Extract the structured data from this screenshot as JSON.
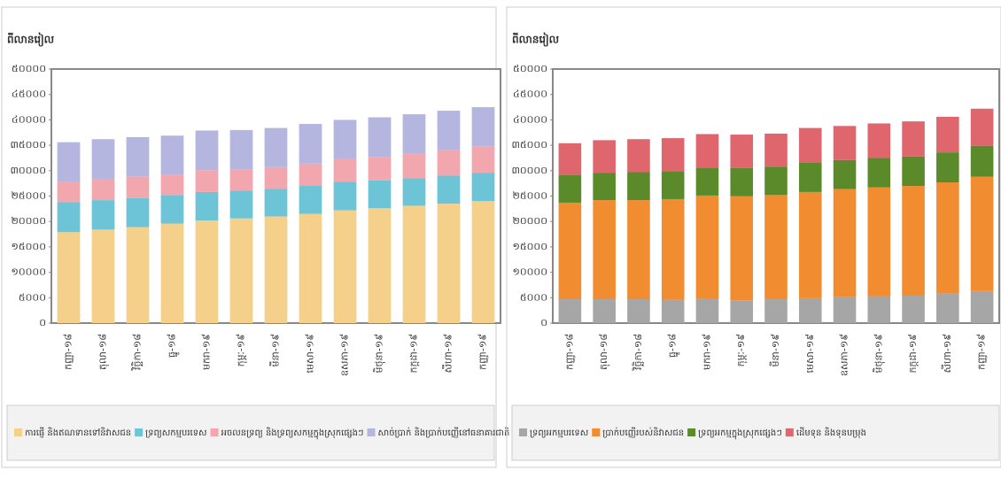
{
  "chart_data": [
    {
      "type": "bar",
      "stacked": true,
      "y_label": "ពីលានរៀល",
      "categories": [
        "កញ្ញា-១៨",
        "តុលា-១៨",
        "វិច្ឆិកា-១៨",
        "ធ្នូ-១៨",
        "មករា-១៩",
        "កុម្ភៈ-១៩",
        "មីនា-១៩",
        "មេសា-១៩",
        "ឧសភា-១៩",
        "មិថុនា-១៩",
        "កក្កដា-១៩",
        "សីហា-១៩",
        "កញ្ញា-១៩"
      ],
      "ylim": [
        0,
        50000
      ],
      "yticks": [
        {
          "value": 0,
          "label": "០"
        },
        {
          "value": 5000,
          "label": "៥០០០"
        },
        {
          "value": 10000,
          "label": "១០០០០"
        },
        {
          "value": 15000,
          "label": "១៥០០០"
        },
        {
          "value": 20000,
          "label": "២០០០០"
        },
        {
          "value": 25000,
          "label": "២៥០០០"
        },
        {
          "value": 30000,
          "label": "៣០០០០"
        },
        {
          "value": 35000,
          "label": "៣៥០០០"
        },
        {
          "value": 40000,
          "label": "៤០០០០"
        },
        {
          "value": 45000,
          "label": "៤៥០០០"
        },
        {
          "value": 50000,
          "label": "៥០០០០"
        }
      ],
      "series": [
        {
          "name": "ការផ្ញើ និងឥណទានទៅនិវាសជន",
          "color": "#f5d08a",
          "values": [
            17900,
            18400,
            18900,
            19600,
            20200,
            20600,
            21000,
            21500,
            22200,
            22600,
            23100,
            23500,
            24000
          ]
        },
        {
          "name": "ទ្រព្យសកម្មបរទេស",
          "color": "#6cc4d6",
          "values": [
            5900,
            5800,
            5700,
            5600,
            5600,
            5500,
            5400,
            5500,
            5600,
            5500,
            5400,
            5500,
            5600
          ]
        },
        {
          "name": "អចលនទ្រព្យ និងទ្រព្យសកម្មក្នុងស្រុកផ្សេងៗ",
          "color": "#f2a6ae",
          "values": [
            4000,
            4100,
            4200,
            4000,
            4300,
            4100,
            4300,
            4400,
            4500,
            4600,
            4800,
            5000,
            5200
          ]
        },
        {
          "name": "សាច់ប្រាក់ និងប្រាក់បញ្ញើនៅធនាគារជាតិ",
          "color": "#b4b6df",
          "values": [
            7800,
            7900,
            7800,
            7700,
            7800,
            7800,
            7700,
            7800,
            7700,
            7800,
            7800,
            7800,
            7700
          ]
        }
      ]
    },
    {
      "type": "bar",
      "stacked": true,
      "y_label": "ពីលានរៀល",
      "categories": [
        "កញ្ញា-១៨",
        "តុលា-១៨",
        "វិច្ឆិកា-១៨",
        "ធ្នូ-១៨",
        "មករា-១៩",
        "កុម្ភៈ-១៩",
        "មីនា-១៩",
        "មេសា-១៩",
        "ឧសភា-១៩",
        "មិថុនា-១៩",
        "កក្កដា-១៩",
        "សីហា-១៩",
        "កញ្ញា-១៩"
      ],
      "ylim": [
        0,
        50000
      ],
      "yticks": [
        {
          "value": 0,
          "label": "០"
        },
        {
          "value": 5000,
          "label": "៥០០០"
        },
        {
          "value": 10000,
          "label": "១០០០០"
        },
        {
          "value": 15000,
          "label": "១៥០០០"
        },
        {
          "value": 20000,
          "label": "២០០០០"
        },
        {
          "value": 25000,
          "label": "២៥០០០"
        },
        {
          "value": 30000,
          "label": "៣០០០០"
        },
        {
          "value": 35000,
          "label": "៣៥០០០"
        },
        {
          "value": 40000,
          "label": "៤០០០០"
        },
        {
          "value": 45000,
          "label": "៤៥០០០"
        },
        {
          "value": 50000,
          "label": "៥០០០០"
        }
      ],
      "series": [
        {
          "name": "ទ្រព្យអកម្មបរទេស",
          "color": "#a6a6a6",
          "values": [
            4700,
            4700,
            4700,
            4600,
            4800,
            4500,
            4700,
            4900,
            5100,
            5300,
            5400,
            5800,
            6300
          ]
        },
        {
          "name": "ប្រាក់បញ្ញើរបស់និវាសជន",
          "color": "#f28c30",
          "values": [
            19000,
            19500,
            19500,
            19800,
            20300,
            20500,
            20500,
            20900,
            21300,
            21400,
            21600,
            21900,
            22500
          ]
        },
        {
          "name": "ទ្រព្យអកម្មក្នុងស្រុកផ្សេងៗ",
          "color": "#5a8a2a",
          "values": [
            5400,
            5400,
            5500,
            5500,
            5500,
            5500,
            5600,
            5800,
            5700,
            5800,
            5800,
            5900,
            6100
          ]
        },
        {
          "name": "ដើមទុន និងទុនបម្រុង",
          "color": "#e0666e",
          "values": [
            6300,
            6400,
            6500,
            6500,
            6600,
            6600,
            6500,
            6800,
            6700,
            6800,
            6900,
            7000,
            7300
          ]
        }
      ]
    }
  ]
}
